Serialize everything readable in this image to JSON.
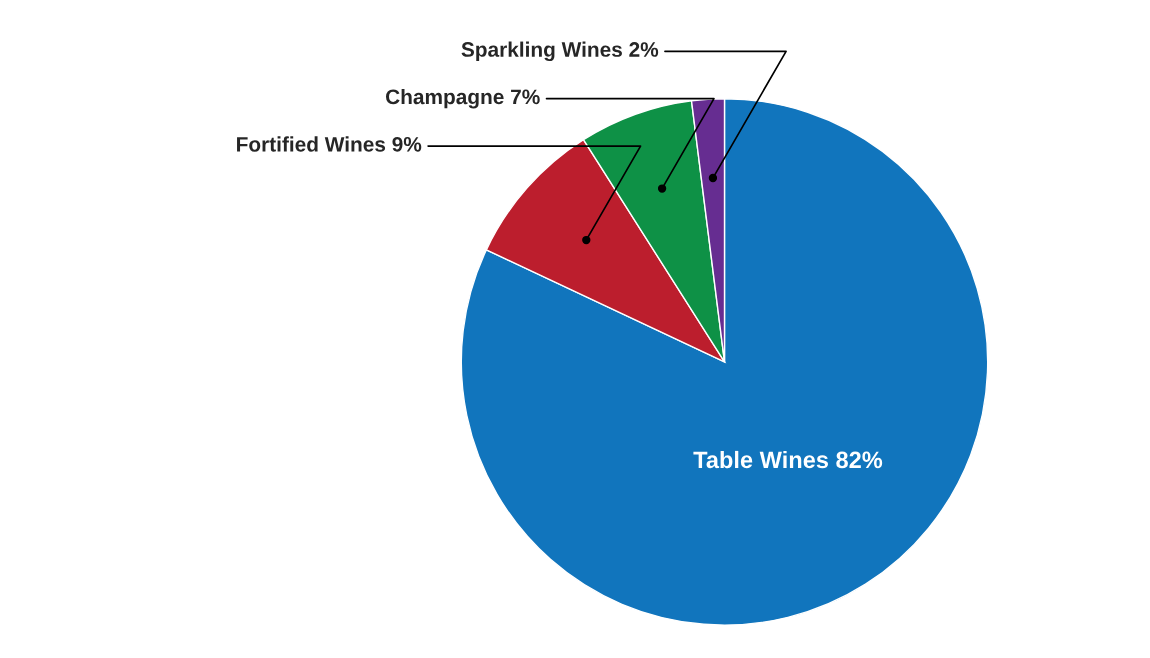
{
  "chart_data": {
    "type": "pie",
    "categories": [
      "Table Wines",
      "Fortified Wines",
      "Champagne",
      "Sparkling Wines"
    ],
    "values": [
      82,
      9,
      7,
      2
    ],
    "value_labels": [
      "82%",
      "9%",
      "7%",
      "2%"
    ],
    "colors": [
      "#1175bd",
      "#bc1e2d",
      "#0e9146",
      "#662d91"
    ],
    "legend": false
  }
}
